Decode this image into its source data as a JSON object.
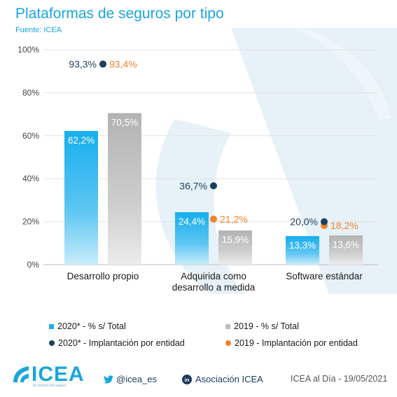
{
  "title": "Plataformas de seguros por tipo",
  "source": "Fuente: ICEA",
  "colors": {
    "bar2020": "#1ab0ee",
    "bar2019": "#bdbdbd",
    "dot2020": "#1e3f5e",
    "dot2019": "#f0832b",
    "accent": "#1aa5dc"
  },
  "chart_data": {
    "type": "bar",
    "categories": [
      "Desarrollo propio",
      "Adquirida como desarrollo a medida",
      "Software estándar"
    ],
    "category_lines": [
      [
        "Desarrollo propio"
      ],
      [
        "Adquirida como",
        "desarrollo a medida"
      ],
      [
        "Software estándar"
      ]
    ],
    "ylim": [
      0,
      100
    ],
    "yticks": [
      "0%",
      "20%",
      "40%",
      "60%",
      "80%",
      "100%"
    ],
    "series": [
      {
        "name": "2020* - % s/ Total",
        "type": "bar",
        "values": [
          62.2,
          24.4,
          13.3
        ],
        "labels": [
          "62,2%",
          "24,4%",
          "13,3%"
        ]
      },
      {
        "name": "2019 - % s/ Total",
        "type": "bar",
        "values": [
          70.5,
          15.9,
          13.6
        ],
        "labels": [
          "70,5%",
          "15,9%",
          "13,6%"
        ]
      },
      {
        "name": "2020* - Implantación por entidad",
        "type": "scatter",
        "values": [
          93.3,
          36.7,
          20.0
        ],
        "labels": [
          "93,3%",
          "36,7%",
          "20,0%"
        ]
      },
      {
        "name": "2019 - Implantación por entidad",
        "type": "scatter",
        "values": [
          93.4,
          21.2,
          18.2
        ],
        "labels": [
          "93,4%",
          "21,2%",
          "18,2%"
        ]
      }
    ],
    "grid": true,
    "legend": "bottom"
  },
  "footer": {
    "logo": "ICEA",
    "logo_tagline": "Al servicio del seguro",
    "twitter": "@icea_es",
    "twitter_icon": "twitter-bird-icon",
    "linkedin": "Asociación ICEA",
    "linkedin_icon": "linkedin-icon",
    "date": "ICEA al Día - 19/05/2021"
  }
}
